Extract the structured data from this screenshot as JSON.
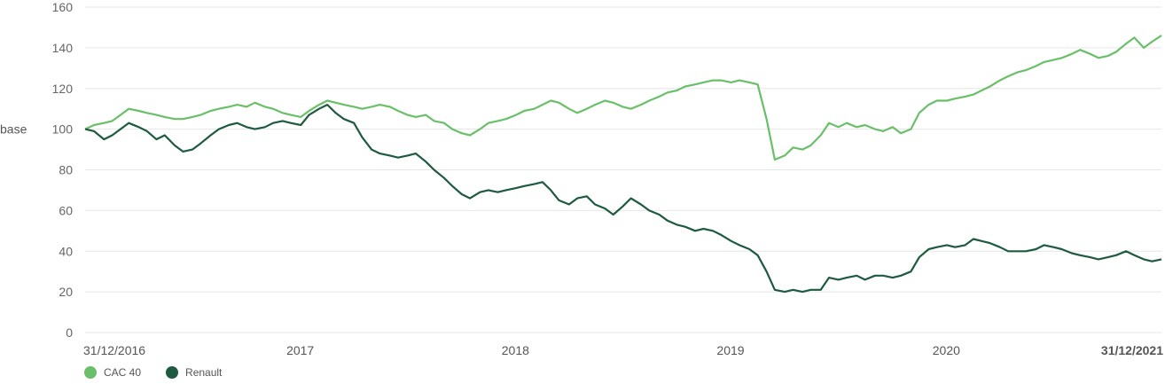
{
  "chart_data": {
    "type": "line",
    "ylabel": "base",
    "ylim": [
      0,
      160
    ],
    "y_ticks": [
      0,
      20,
      40,
      60,
      80,
      100,
      120,
      140,
      160
    ],
    "x_ticks": [
      {
        "date": "2016-12-31",
        "label": "31/12/2016",
        "style": "start"
      },
      {
        "date": "2017-12-31",
        "label": "2017",
        "style": "normal"
      },
      {
        "date": "2018-12-31",
        "label": "2018",
        "style": "normal"
      },
      {
        "date": "2019-12-31",
        "label": "2019",
        "style": "normal"
      },
      {
        "date": "2020-12-31",
        "label": "2020",
        "style": "normal"
      },
      {
        "date": "2021-12-31",
        "label": "31/12/2021",
        "style": "end"
      }
    ],
    "xlim": [
      "2016-12-31",
      "2021-12-31"
    ],
    "grid": true,
    "legend_position": "bottom-left",
    "series": [
      {
        "name": "CAC 40",
        "color": "#6abf69",
        "points": [
          [
            "2016-12-31",
            100
          ],
          [
            "2017-01-15",
            102
          ],
          [
            "2017-02-01",
            103
          ],
          [
            "2017-02-15",
            104
          ],
          [
            "2017-03-01",
            107
          ],
          [
            "2017-03-15",
            110
          ],
          [
            "2017-04-01",
            109
          ],
          [
            "2017-04-15",
            108
          ],
          [
            "2017-05-01",
            107
          ],
          [
            "2017-05-15",
            106
          ],
          [
            "2017-06-01",
            105
          ],
          [
            "2017-06-15",
            105
          ],
          [
            "2017-07-01",
            106
          ],
          [
            "2017-07-15",
            107
          ],
          [
            "2017-08-01",
            109
          ],
          [
            "2017-08-15",
            110
          ],
          [
            "2017-09-01",
            111
          ],
          [
            "2017-09-15",
            112
          ],
          [
            "2017-10-01",
            111
          ],
          [
            "2017-10-15",
            113
          ],
          [
            "2017-11-01",
            111
          ],
          [
            "2017-11-15",
            110
          ],
          [
            "2017-12-01",
            108
          ],
          [
            "2017-12-15",
            107
          ],
          [
            "2018-01-01",
            106
          ],
          [
            "2018-01-15",
            109
          ],
          [
            "2018-02-01",
            112
          ],
          [
            "2018-02-15",
            114
          ],
          [
            "2018-03-01",
            113
          ],
          [
            "2018-03-15",
            112
          ],
          [
            "2018-04-01",
            111
          ],
          [
            "2018-04-15",
            110
          ],
          [
            "2018-05-01",
            111
          ],
          [
            "2018-05-15",
            112
          ],
          [
            "2018-06-01",
            111
          ],
          [
            "2018-06-15",
            109
          ],
          [
            "2018-07-01",
            107
          ],
          [
            "2018-07-15",
            106
          ],
          [
            "2018-08-01",
            107
          ],
          [
            "2018-08-15",
            104
          ],
          [
            "2018-09-01",
            103
          ],
          [
            "2018-09-15",
            100
          ],
          [
            "2018-10-01",
            98
          ],
          [
            "2018-10-15",
            97
          ],
          [
            "2018-11-01",
            100
          ],
          [
            "2018-11-15",
            103
          ],
          [
            "2018-12-01",
            104
          ],
          [
            "2018-12-15",
            105
          ],
          [
            "2019-01-01",
            107
          ],
          [
            "2019-01-15",
            109
          ],
          [
            "2019-02-01",
            110
          ],
          [
            "2019-02-15",
            112
          ],
          [
            "2019-03-01",
            114
          ],
          [
            "2019-03-15",
            113
          ],
          [
            "2019-04-01",
            110
          ],
          [
            "2019-04-15",
            108
          ],
          [
            "2019-05-01",
            110
          ],
          [
            "2019-05-15",
            112
          ],
          [
            "2019-06-01",
            114
          ],
          [
            "2019-06-15",
            113
          ],
          [
            "2019-07-01",
            111
          ],
          [
            "2019-07-15",
            110
          ],
          [
            "2019-08-01",
            112
          ],
          [
            "2019-08-15",
            114
          ],
          [
            "2019-09-01",
            116
          ],
          [
            "2019-09-15",
            118
          ],
          [
            "2019-10-01",
            119
          ],
          [
            "2019-10-15",
            121
          ],
          [
            "2019-11-01",
            122
          ],
          [
            "2019-11-15",
            123
          ],
          [
            "2019-12-01",
            124
          ],
          [
            "2019-12-15",
            124
          ],
          [
            "2020-01-01",
            123
          ],
          [
            "2020-01-15",
            124
          ],
          [
            "2020-02-01",
            123
          ],
          [
            "2020-02-15",
            122
          ],
          [
            "2020-03-01",
            105
          ],
          [
            "2020-03-15",
            85
          ],
          [
            "2020-04-01",
            87
          ],
          [
            "2020-04-15",
            91
          ],
          [
            "2020-05-01",
            90
          ],
          [
            "2020-05-15",
            92
          ],
          [
            "2020-06-01",
            97
          ],
          [
            "2020-06-15",
            103
          ],
          [
            "2020-07-01",
            101
          ],
          [
            "2020-07-15",
            103
          ],
          [
            "2020-08-01",
            101
          ],
          [
            "2020-08-15",
            102
          ],
          [
            "2020-09-01",
            100
          ],
          [
            "2020-09-15",
            99
          ],
          [
            "2020-10-01",
            101
          ],
          [
            "2020-10-15",
            98
          ],
          [
            "2020-11-01",
            100
          ],
          [
            "2020-11-15",
            108
          ],
          [
            "2020-12-01",
            112
          ],
          [
            "2020-12-15",
            114
          ],
          [
            "2021-01-01",
            114
          ],
          [
            "2021-01-15",
            115
          ],
          [
            "2021-02-01",
            116
          ],
          [
            "2021-02-15",
            117
          ],
          [
            "2021-03-01",
            119
          ],
          [
            "2021-03-15",
            121
          ],
          [
            "2021-04-01",
            124
          ],
          [
            "2021-04-15",
            126
          ],
          [
            "2021-05-01",
            128
          ],
          [
            "2021-05-15",
            129
          ],
          [
            "2021-06-01",
            131
          ],
          [
            "2021-06-15",
            133
          ],
          [
            "2021-07-01",
            134
          ],
          [
            "2021-07-15",
            135
          ],
          [
            "2021-08-01",
            137
          ],
          [
            "2021-08-15",
            139
          ],
          [
            "2021-09-01",
            137
          ],
          [
            "2021-09-15",
            135
          ],
          [
            "2021-10-01",
            136
          ],
          [
            "2021-10-15",
            138
          ],
          [
            "2021-11-01",
            142
          ],
          [
            "2021-11-15",
            145
          ],
          [
            "2021-12-01",
            140
          ],
          [
            "2021-12-15",
            143
          ],
          [
            "2021-12-31",
            146
          ]
        ]
      },
      {
        "name": "Renault",
        "color": "#1e5a40",
        "points": [
          [
            "2016-12-31",
            100
          ],
          [
            "2017-01-15",
            99
          ],
          [
            "2017-02-01",
            95
          ],
          [
            "2017-02-15",
            97
          ],
          [
            "2017-03-01",
            100
          ],
          [
            "2017-03-15",
            103
          ],
          [
            "2017-04-01",
            101
          ],
          [
            "2017-04-15",
            99
          ],
          [
            "2017-05-01",
            95
          ],
          [
            "2017-05-15",
            97
          ],
          [
            "2017-06-01",
            92
          ],
          [
            "2017-06-15",
            89
          ],
          [
            "2017-07-01",
            90
          ],
          [
            "2017-07-15",
            93
          ],
          [
            "2017-08-01",
            97
          ],
          [
            "2017-08-15",
            100
          ],
          [
            "2017-09-01",
            102
          ],
          [
            "2017-09-15",
            103
          ],
          [
            "2017-10-01",
            101
          ],
          [
            "2017-10-15",
            100
          ],
          [
            "2017-11-01",
            101
          ],
          [
            "2017-11-15",
            103
          ],
          [
            "2017-12-01",
            104
          ],
          [
            "2017-12-15",
            103
          ],
          [
            "2018-01-01",
            102
          ],
          [
            "2018-01-15",
            107
          ],
          [
            "2018-02-01",
            110
          ],
          [
            "2018-02-15",
            112
          ],
          [
            "2018-03-01",
            108
          ],
          [
            "2018-03-15",
            105
          ],
          [
            "2018-04-01",
            103
          ],
          [
            "2018-04-15",
            96
          ],
          [
            "2018-05-01",
            90
          ],
          [
            "2018-05-15",
            88
          ],
          [
            "2018-06-01",
            87
          ],
          [
            "2018-06-15",
            86
          ],
          [
            "2018-07-01",
            87
          ],
          [
            "2018-07-15",
            88
          ],
          [
            "2018-08-01",
            84
          ],
          [
            "2018-08-15",
            80
          ],
          [
            "2018-09-01",
            76
          ],
          [
            "2018-09-15",
            72
          ],
          [
            "2018-10-01",
            68
          ],
          [
            "2018-10-15",
            66
          ],
          [
            "2018-11-01",
            69
          ],
          [
            "2018-11-15",
            70
          ],
          [
            "2018-12-01",
            69
          ],
          [
            "2018-12-15",
            70
          ],
          [
            "2019-01-01",
            71
          ],
          [
            "2019-01-15",
            72
          ],
          [
            "2019-02-01",
            73
          ],
          [
            "2019-02-15",
            74
          ],
          [
            "2019-03-01",
            70
          ],
          [
            "2019-03-15",
            65
          ],
          [
            "2019-04-01",
            63
          ],
          [
            "2019-04-15",
            66
          ],
          [
            "2019-05-01",
            67
          ],
          [
            "2019-05-15",
            63
          ],
          [
            "2019-06-01",
            61
          ],
          [
            "2019-06-15",
            58
          ],
          [
            "2019-07-01",
            62
          ],
          [
            "2019-07-15",
            66
          ],
          [
            "2019-08-01",
            63
          ],
          [
            "2019-08-15",
            60
          ],
          [
            "2019-09-01",
            58
          ],
          [
            "2019-09-15",
            55
          ],
          [
            "2019-10-01",
            53
          ],
          [
            "2019-10-15",
            52
          ],
          [
            "2019-11-01",
            50
          ],
          [
            "2019-11-15",
            51
          ],
          [
            "2019-12-01",
            50
          ],
          [
            "2019-12-15",
            48
          ],
          [
            "2020-01-01",
            45
          ],
          [
            "2020-01-15",
            43
          ],
          [
            "2020-02-01",
            41
          ],
          [
            "2020-02-15",
            38
          ],
          [
            "2020-03-01",
            30
          ],
          [
            "2020-03-15",
            21
          ],
          [
            "2020-04-01",
            20
          ],
          [
            "2020-04-15",
            21
          ],
          [
            "2020-05-01",
            20
          ],
          [
            "2020-05-15",
            21
          ],
          [
            "2020-06-01",
            21
          ],
          [
            "2020-06-15",
            27
          ],
          [
            "2020-07-01",
            26
          ],
          [
            "2020-07-15",
            27
          ],
          [
            "2020-08-01",
            28
          ],
          [
            "2020-08-15",
            26
          ],
          [
            "2020-09-01",
            28
          ],
          [
            "2020-09-15",
            28
          ],
          [
            "2020-10-01",
            27
          ],
          [
            "2020-10-15",
            28
          ],
          [
            "2020-11-01",
            30
          ],
          [
            "2020-11-15",
            37
          ],
          [
            "2020-12-01",
            41
          ],
          [
            "2020-12-15",
            42
          ],
          [
            "2021-01-01",
            43
          ],
          [
            "2021-01-15",
            42
          ],
          [
            "2021-02-01",
            43
          ],
          [
            "2021-02-15",
            46
          ],
          [
            "2021-03-01",
            45
          ],
          [
            "2021-03-15",
            44
          ],
          [
            "2021-04-01",
            42
          ],
          [
            "2021-04-15",
            40
          ],
          [
            "2021-05-01",
            40
          ],
          [
            "2021-05-15",
            40
          ],
          [
            "2021-06-01",
            41
          ],
          [
            "2021-06-15",
            43
          ],
          [
            "2021-07-01",
            42
          ],
          [
            "2021-07-15",
            41
          ],
          [
            "2021-08-01",
            39
          ],
          [
            "2021-08-15",
            38
          ],
          [
            "2021-09-01",
            37
          ],
          [
            "2021-09-15",
            36
          ],
          [
            "2021-10-01",
            37
          ],
          [
            "2021-10-15",
            38
          ],
          [
            "2021-11-01",
            40
          ],
          [
            "2021-11-15",
            38
          ],
          [
            "2021-12-01",
            36
          ],
          [
            "2021-12-15",
            35
          ],
          [
            "2021-12-31",
            36
          ]
        ]
      }
    ]
  },
  "legend": {
    "items": [
      {
        "label": "CAC 40",
        "color": "#6abf69"
      },
      {
        "label": "Renault",
        "color": "#1e5a40"
      }
    ]
  },
  "colors": {
    "start_tick": "#6abf69",
    "end_tick": "#1a1a1a",
    "grid": "#e6e6e6"
  }
}
